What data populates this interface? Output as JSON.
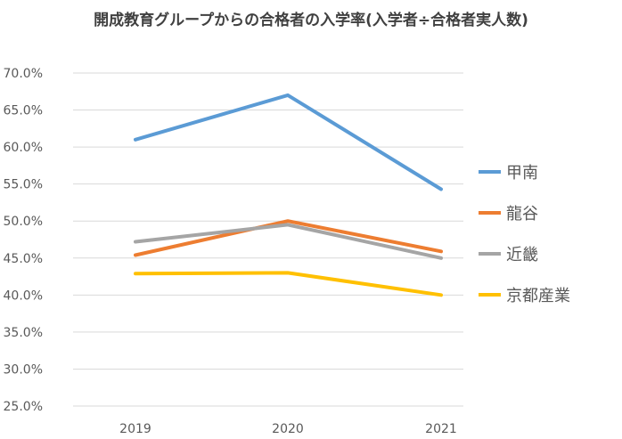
{
  "chart_data": {
    "type": "line",
    "title": "開成教育グループからの合格者の入学率(入学者÷合格者実人数)",
    "categories": [
      "2019",
      "2020",
      "2021"
    ],
    "series": [
      {
        "name": "甲南",
        "values": [
          61.0,
          67.0,
          54.3
        ],
        "color": "#5b9bd5"
      },
      {
        "name": "龍谷",
        "values": [
          45.4,
          50.0,
          45.9
        ],
        "color": "#ed7d31"
      },
      {
        "name": "近畿",
        "values": [
          47.2,
          49.5,
          45.0
        ],
        "color": "#a5a5a5"
      },
      {
        "name": "京都産業",
        "values": [
          42.9,
          43.0,
          40.0
        ],
        "color": "#ffc000"
      }
    ],
    "y_ticks": [
      "70.0%",
      "65.0%",
      "60.0%",
      "55.0%",
      "50.0%",
      "45.0%",
      "40.0%",
      "35.0%",
      "30.0%",
      "25.0%"
    ],
    "ylim": [
      25,
      70
    ],
    "grid": true,
    "legend_position": "right"
  }
}
